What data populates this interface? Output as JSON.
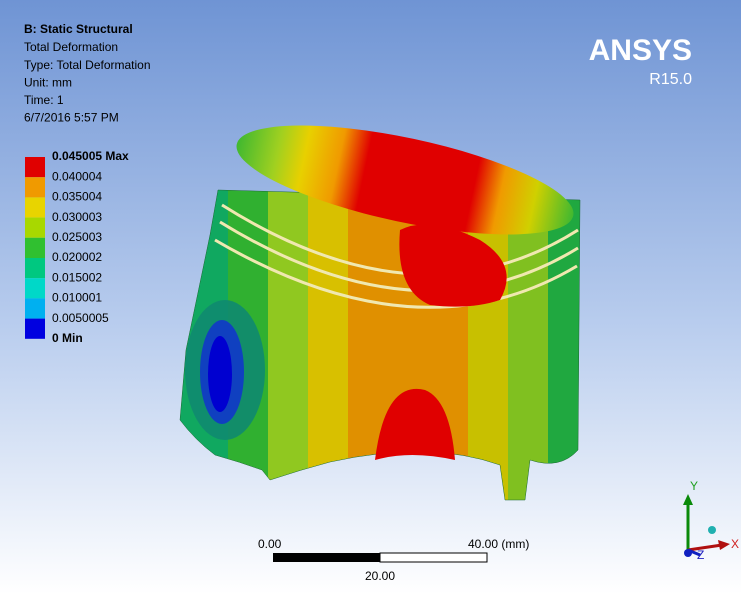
{
  "header": {
    "title": "B: Static Structural",
    "lines": [
      "Total Deformation",
      "Type: Total Deformation",
      "Unit: mm",
      "Time: 1",
      "6/7/2016 5:57 PM"
    ]
  },
  "legend": {
    "labels": [
      "0.045005 Max",
      "0.040004",
      "0.035004",
      "0.030003",
      "0.025003",
      "0.020002",
      "0.015002",
      "0.010001",
      "0.0050005",
      "0 Min"
    ],
    "colors": [
      "#e00000",
      "#f09a00",
      "#e8d400",
      "#a8d800",
      "#30c030",
      "#00c880",
      "#00d8c8",
      "#00b0f0",
      "#0000e0"
    ]
  },
  "logo": {
    "name": "ANSYS",
    "version": "R15.0"
  },
  "scale_bar": {
    "start": "0.00",
    "end": "40.00 (mm)",
    "middle": "20.00"
  },
  "triad": {
    "y": "Y",
    "x": "X",
    "z": "Z"
  }
}
